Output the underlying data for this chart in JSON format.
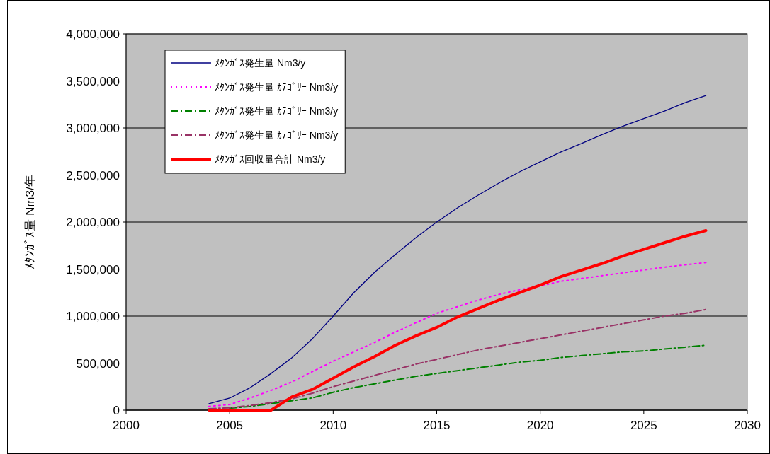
{
  "chart_data": {
    "type": "line",
    "ylabel": "ﾒﾀﾝｶﾞｽ量  Nm3/年",
    "x": [
      2004,
      2005,
      2006,
      2007,
      2008,
      2009,
      2010,
      2011,
      2012,
      2013,
      2014,
      2015,
      2016,
      2017,
      2018,
      2019,
      2020,
      2021,
      2022,
      2023,
      2024,
      2025,
      2026,
      2027,
      2028
    ],
    "series": [
      {
        "name": "ﾒﾀﾝｶﾞｽ発生量 Nm3/y",
        "color": "#000080",
        "line_style": "solid",
        "values": [
          68000,
          128000,
          240000,
          390000,
          556000,
          760000,
          1000000,
          1250000,
          1466000,
          1654000,
          1835000,
          2000000,
          2150000,
          2286000,
          2414000,
          2534000,
          2640000,
          2745000,
          2835000,
          2932000,
          3020000,
          3100000,
          3180000,
          3270000,
          3345000
        ]
      },
      {
        "name": "ﾒﾀﾝｶﾞｽ発生量 ｶﾃｺﾞﾘｰ Nm3/y",
        "color": "#ff00ff",
        "line_style": "dotted",
        "values": [
          40000,
          60000,
          130000,
          210000,
          300000,
          410000,
          520000,
          620000,
          720000,
          830000,
          930000,
          1030000,
          1100000,
          1170000,
          1230000,
          1280000,
          1320000,
          1370000,
          1400000,
          1430000,
          1460000,
          1490000,
          1520000,
          1545000,
          1570000
        ]
      },
      {
        "name": "ﾒﾀﾝｶﾞｽ発生量 ｶﾃｺﾞﾘｰ Nm3/y",
        "color": "#008000",
        "line_style": "dashed",
        "values": [
          null,
          20000,
          40000,
          70000,
          100000,
          130000,
          190000,
          240000,
          280000,
          320000,
          360000,
          390000,
          420000,
          450000,
          480000,
          510000,
          530000,
          560000,
          580000,
          600000,
          620000,
          630000,
          650000,
          670000,
          690000
        ]
      },
      {
        "name": "ﾒﾀﾝｶﾞｽ発生量 ｶﾃｺﾞﾘｰ Nm3/y",
        "color": "#993366",
        "line_style": "dashed",
        "values": [
          15000,
          25000,
          50000,
          80000,
          120000,
          180000,
          250000,
          310000,
          370000,
          430000,
          490000,
          540000,
          590000,
          640000,
          680000,
          720000,
          760000,
          800000,
          840000,
          880000,
          920000,
          960000,
          1000000,
          1030000,
          1070000
        ]
      },
      {
        "name": "ﾒﾀﾝｶﾞｽ回収量合計 Nm3/y",
        "color": "#ff0000",
        "line_style": "solid",
        "values": [
          0,
          0,
          0,
          0,
          140000,
          220000,
          340000,
          460000,
          570000,
          690000,
          790000,
          880000,
          990000,
          1080000,
          1170000,
          1250000,
          1330000,
          1420000,
          1490000,
          1560000,
          1640000,
          1710000,
          1780000,
          1850000,
          1910000
        ]
      }
    ],
    "xlim": [
      2000,
      2030
    ],
    "xticks": [
      2000,
      2005,
      2010,
      2015,
      2020,
      2025,
      2030
    ],
    "ylim": [
      0,
      4000000
    ],
    "yticks": [
      {
        "value": 0,
        "label": "0"
      },
      {
        "value": 500000,
        "label": "500,000"
      },
      {
        "value": 1000000,
        "label": "1,000,000"
      },
      {
        "value": 1500000,
        "label": "1,500,000"
      },
      {
        "value": 2000000,
        "label": "2,000,000"
      },
      {
        "value": 2500000,
        "label": "2,500,000"
      },
      {
        "value": 3000000,
        "label": "3,000,000"
      },
      {
        "value": 3500000,
        "label": "3,500,000"
      },
      {
        "value": 4000000,
        "label": "4,000,000"
      }
    ],
    "grid": "y",
    "legend": "top left",
    "marker": "none"
  }
}
